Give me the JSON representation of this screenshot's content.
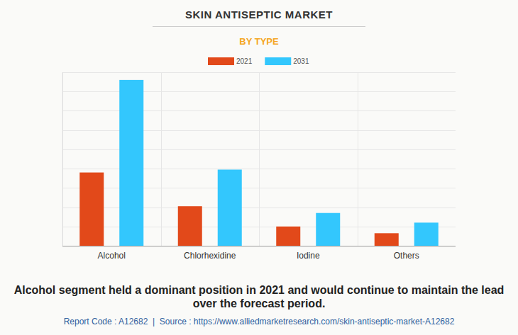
{
  "chart_data": {
    "type": "bar",
    "title": "SKIN ANTISEPTIC MARKET",
    "subtitle": "BY TYPE",
    "categories": [
      "Alcohol",
      "Chlorhexidine",
      "Iodine",
      "Others"
    ],
    "series": [
      {
        "name": "2021",
        "color": "#e2491a",
        "values": [
          3.8,
          2.05,
          1.0,
          0.65
        ]
      },
      {
        "name": "2031",
        "color": "#33c7fd",
        "values": [
          8.6,
          3.95,
          1.7,
          1.2
        ]
      }
    ],
    "ylim": [
      0,
      9
    ],
    "yticks": [
      0,
      1,
      2,
      3,
      4,
      5,
      6,
      7,
      8,
      9
    ],
    "grid": true,
    "legend": "top",
    "tick_labels": "x",
    "annotations": [
      "Alcohol segment held a dominant position in 2021 and would continue to maintain the lead over the forecast period.",
      "Report Code : A12682  |  Source : https://www.alliedmarketresearch.com/skin-antiseptic-market-A12682"
    ]
  }
}
